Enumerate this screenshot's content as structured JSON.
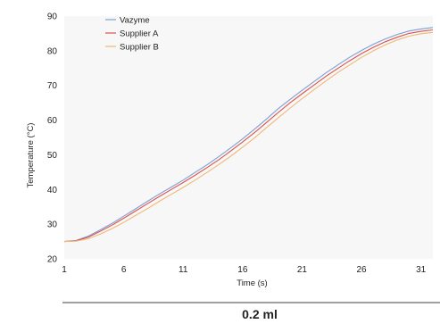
{
  "chart_data": {
    "type": "line",
    "xlabel": "Time (s)",
    "ylabel": "Temperature (°C)",
    "xlim": [
      1,
      32
    ],
    "ylim": [
      20,
      90
    ],
    "xticks": [
      1,
      6,
      11,
      16,
      21,
      26,
      31
    ],
    "yticks": [
      20,
      30,
      40,
      50,
      60,
      70,
      80,
      90
    ],
    "grid": false,
    "legend_position": "top-left",
    "caption": "0.2 ml",
    "series": [
      {
        "name": "Vazyme",
        "color": "#7f9fd4",
        "x": [
          1,
          2,
          3,
          4,
          5,
          6,
          7,
          8,
          9,
          10,
          11,
          12,
          13,
          14,
          15,
          16,
          17,
          18,
          19,
          20,
          21,
          22,
          23,
          24,
          25,
          26,
          27,
          28,
          29,
          30,
          31,
          32
        ],
        "y": [
          25,
          25.3,
          26.5,
          28.3,
          30.2,
          32.3,
          34.4,
          36.6,
          38.7,
          40.7,
          42.7,
          44.9,
          47.1,
          49.5,
          52.0,
          54.6,
          57.4,
          60.3,
          63.3,
          66.0,
          68.6,
          71.1,
          73.6,
          75.9,
          78.1,
          80.1,
          81.9,
          83.4,
          84.7,
          85.7,
          86.3,
          86.7
        ]
      },
      {
        "name": "Supplier A",
        "color": "#d9534f",
        "x": [
          1,
          2,
          3,
          4,
          5,
          6,
          7,
          8,
          9,
          10,
          11,
          12,
          13,
          14,
          15,
          16,
          17,
          18,
          19,
          20,
          21,
          22,
          23,
          24,
          25,
          26,
          27,
          28,
          29,
          30,
          31,
          32
        ],
        "y": [
          25,
          25.2,
          26.2,
          27.9,
          29.7,
          31.7,
          33.8,
          35.9,
          38.0,
          40.0,
          42.0,
          44.1,
          46.3,
          48.6,
          51.1,
          53.7,
          56.4,
          59.3,
          62.2,
          65.0,
          67.6,
          70.1,
          72.6,
          74.9,
          77.1,
          79.2,
          81.0,
          82.6,
          83.9,
          85.0,
          85.6,
          86.0
        ]
      },
      {
        "name": "Supplier B",
        "color": "#f2b774",
        "x": [
          1,
          2,
          3,
          4,
          5,
          6,
          7,
          8,
          9,
          10,
          11,
          12,
          13,
          14,
          15,
          16,
          17,
          18,
          19,
          20,
          21,
          22,
          23,
          24,
          25,
          26,
          27,
          28,
          29,
          30,
          31,
          32
        ],
        "y": [
          25,
          25.1,
          25.8,
          27.1,
          28.7,
          30.5,
          32.5,
          34.5,
          36.6,
          38.6,
          40.6,
          42.7,
          44.9,
          47.2,
          49.6,
          52.2,
          54.9,
          57.8,
          60.7,
          63.5,
          66.2,
          68.8,
          71.3,
          73.7,
          75.9,
          78.1,
          80.0,
          81.7,
          83.1,
          84.2,
          84.9,
          85.3
        ]
      }
    ]
  }
}
